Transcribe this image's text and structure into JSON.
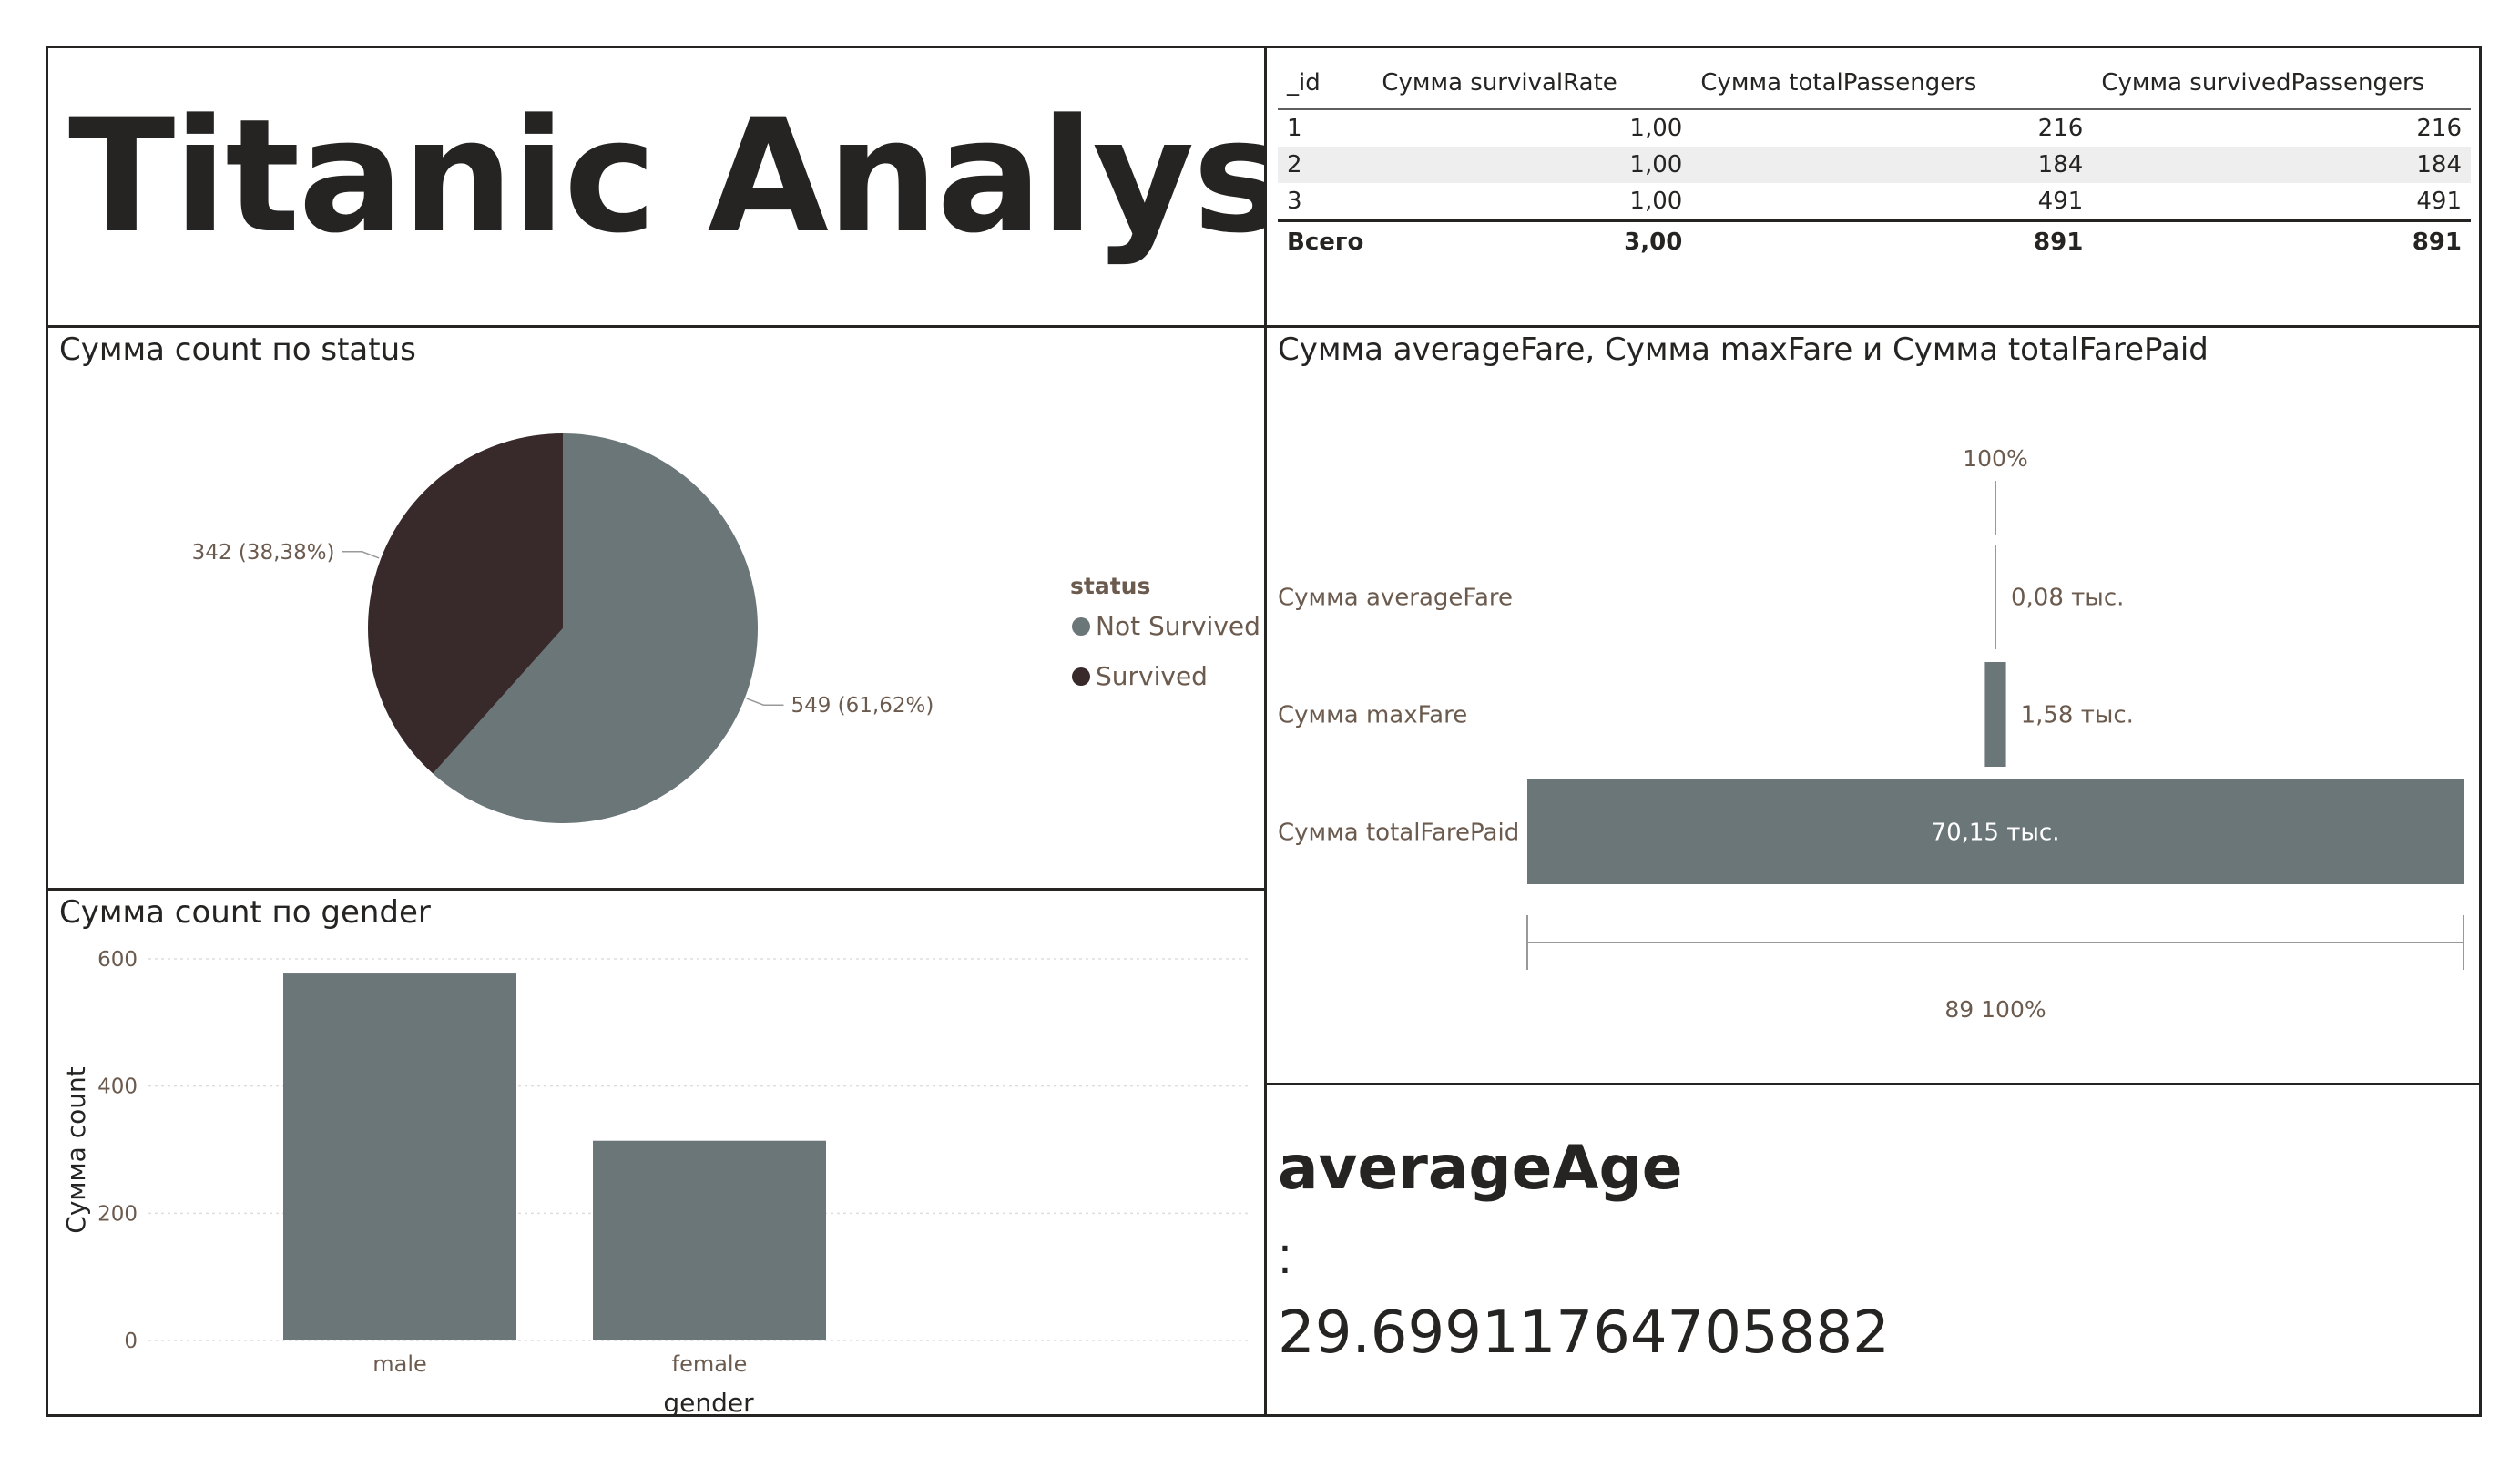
{
  "page_title": "Titanic Analystic",
  "table": {
    "headers": [
      "_id",
      "Сумма survivalRate",
      "Сумма totalPassengers",
      "Сумма survivedPassengers"
    ],
    "rows": [
      [
        "1",
        "1,00",
        "216",
        "216"
      ],
      [
        "2",
        "1,00",
        "184",
        "184"
      ],
      [
        "3",
        "1,00",
        "491",
        "491"
      ]
    ],
    "total": [
      "Всего",
      "3,00",
      "891",
      "891"
    ]
  },
  "colors": {
    "primary": "#6b7679",
    "dark": "#382a2a",
    "text": "#252423",
    "label": "#6b5a4e"
  },
  "chart_data": [
    {
      "type": "pie",
      "title": "Сумма count по status",
      "legend_title": "status",
      "legend_position": "right",
      "slices": [
        {
          "name": "Not Survived",
          "value": 549,
          "label": "549 (61,62%)",
          "color": "#6b7679"
        },
        {
          "name": "Survived",
          "value": 342,
          "label": "342 (38,38%)",
          "color": "#382a2a"
        }
      ]
    },
    {
      "type": "bar",
      "title": "Сумма count по gender",
      "xlabel": "gender",
      "ylabel": "Сумма count",
      "categories": [
        "male",
        "female"
      ],
      "values": [
        577,
        314
      ],
      "ylim": [
        0,
        600
      ],
      "yticks": [
        "0",
        "200",
        "400",
        "600"
      ],
      "grid": true
    },
    {
      "type": "funnel",
      "title": "Сумма averageFare, Сумма maxFare и Сумма totalFarePaid",
      "stages": [
        {
          "name": "Сумма averageFare",
          "value": 80,
          "label": "0,08 тыс."
        },
        {
          "name": "Сумма maxFare",
          "value": 1580,
          "label": "1,58 тыс."
        },
        {
          "name": "Сумма totalFarePaid",
          "value": 70150,
          "label": "70,15 тыс."
        }
      ],
      "top_label": "100%",
      "bottom_label": "89 100%"
    }
  ],
  "card": {
    "label": "averageAge",
    "value": "29.69911764705882"
  }
}
